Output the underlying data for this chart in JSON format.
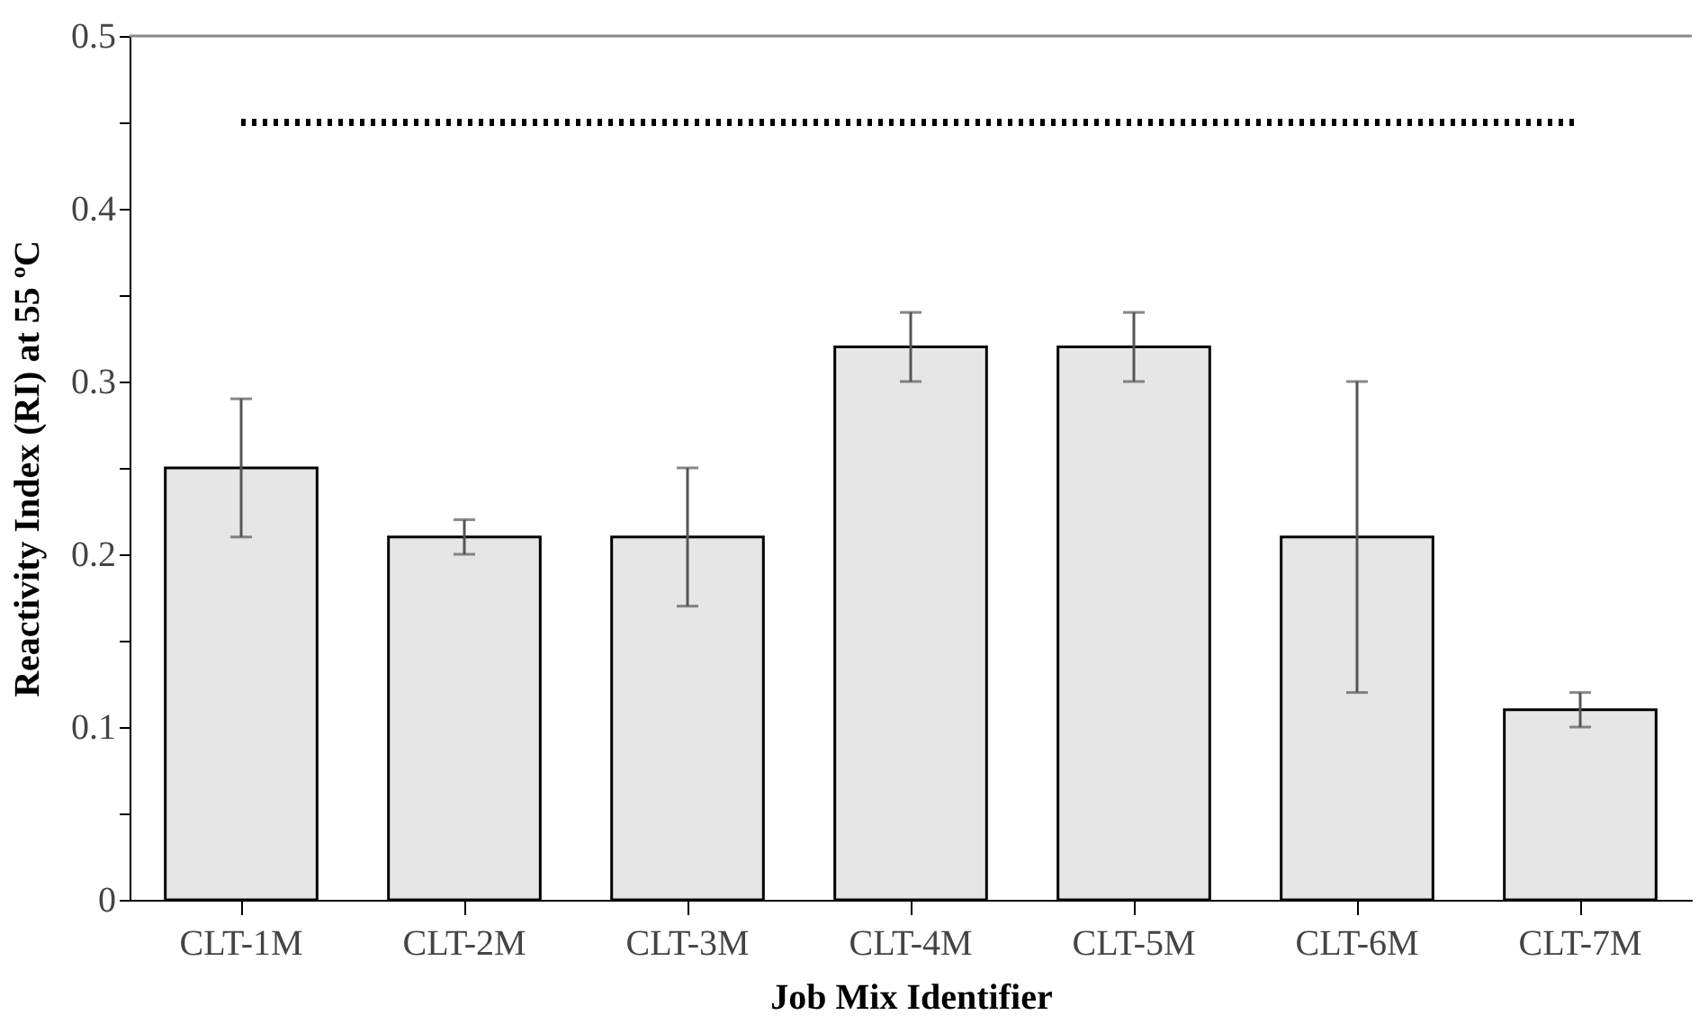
{
  "chart_data": {
    "type": "bar",
    "xlabel": "Job Mix Identifier",
    "ylabel": "Reactivity Index (RI) at 55 ºC",
    "categories": [
      "CLT-1M",
      "CLT-2M",
      "CLT-3M",
      "CLT-4M",
      "CLT-5M",
      "CLT-6M",
      "CLT-7M"
    ],
    "values": [
      0.25,
      0.21,
      0.21,
      0.32,
      0.32,
      0.21,
      0.11
    ],
    "errors": [
      [
        0.21,
        0.29
      ],
      [
        0.2,
        0.22
      ],
      [
        0.17,
        0.25
      ],
      [
        0.3,
        0.34
      ],
      [
        0.3,
        0.34
      ],
      [
        0.12,
        0.3
      ],
      [
        0.1,
        0.12
      ]
    ],
    "color": "#e6e6e6",
    "ylim": [
      0,
      0.5
    ],
    "yticks": [
      0,
      {
        "value": 0.05,
        "label": null
      },
      0.1,
      {
        "value": 0.15,
        "label": null
      },
      0.2,
      {
        "value": 0.25,
        "label": null
      },
      0.3,
      {
        "value": 0.35,
        "label": null
      },
      0.4,
      {
        "value": 0.45,
        "label": null
      },
      0.5
    ],
    "ref_lines": [
      {
        "axis": "y",
        "value": 0.45,
        "color": "#000000",
        "line_style": "dotted"
      }
    ],
    "grid": false
  }
}
